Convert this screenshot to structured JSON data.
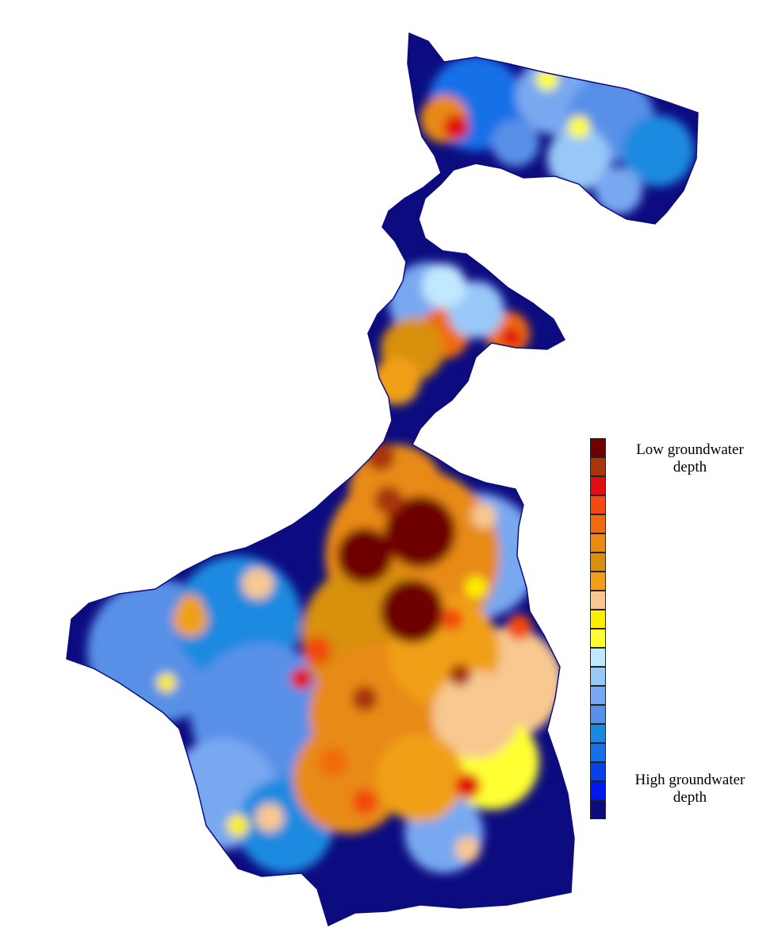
{
  "legend": {
    "low_line1": "Low groundwater",
    "low_line2": "depth",
    "high_line1": "High groundwater",
    "high_line2": "depth",
    "colors": [
      "#6e0000",
      "#a8360b",
      "#e01010",
      "#f24a10",
      "#f06a10",
      "#e88a14",
      "#d89010",
      "#f0a018",
      "#f8c890",
      "#ffee00",
      "#ffff30",
      "#c0e8ff",
      "#98c8f8",
      "#78a8f0",
      "#5890e8",
      "#1a8ae0",
      "#1870e8",
      "#0a40e8",
      "#0018f0",
      "#0c0c80"
    ]
  },
  "map": {
    "description_icon": "groundwater-depth-map",
    "region_outline_color": "#0c0c80"
  }
}
